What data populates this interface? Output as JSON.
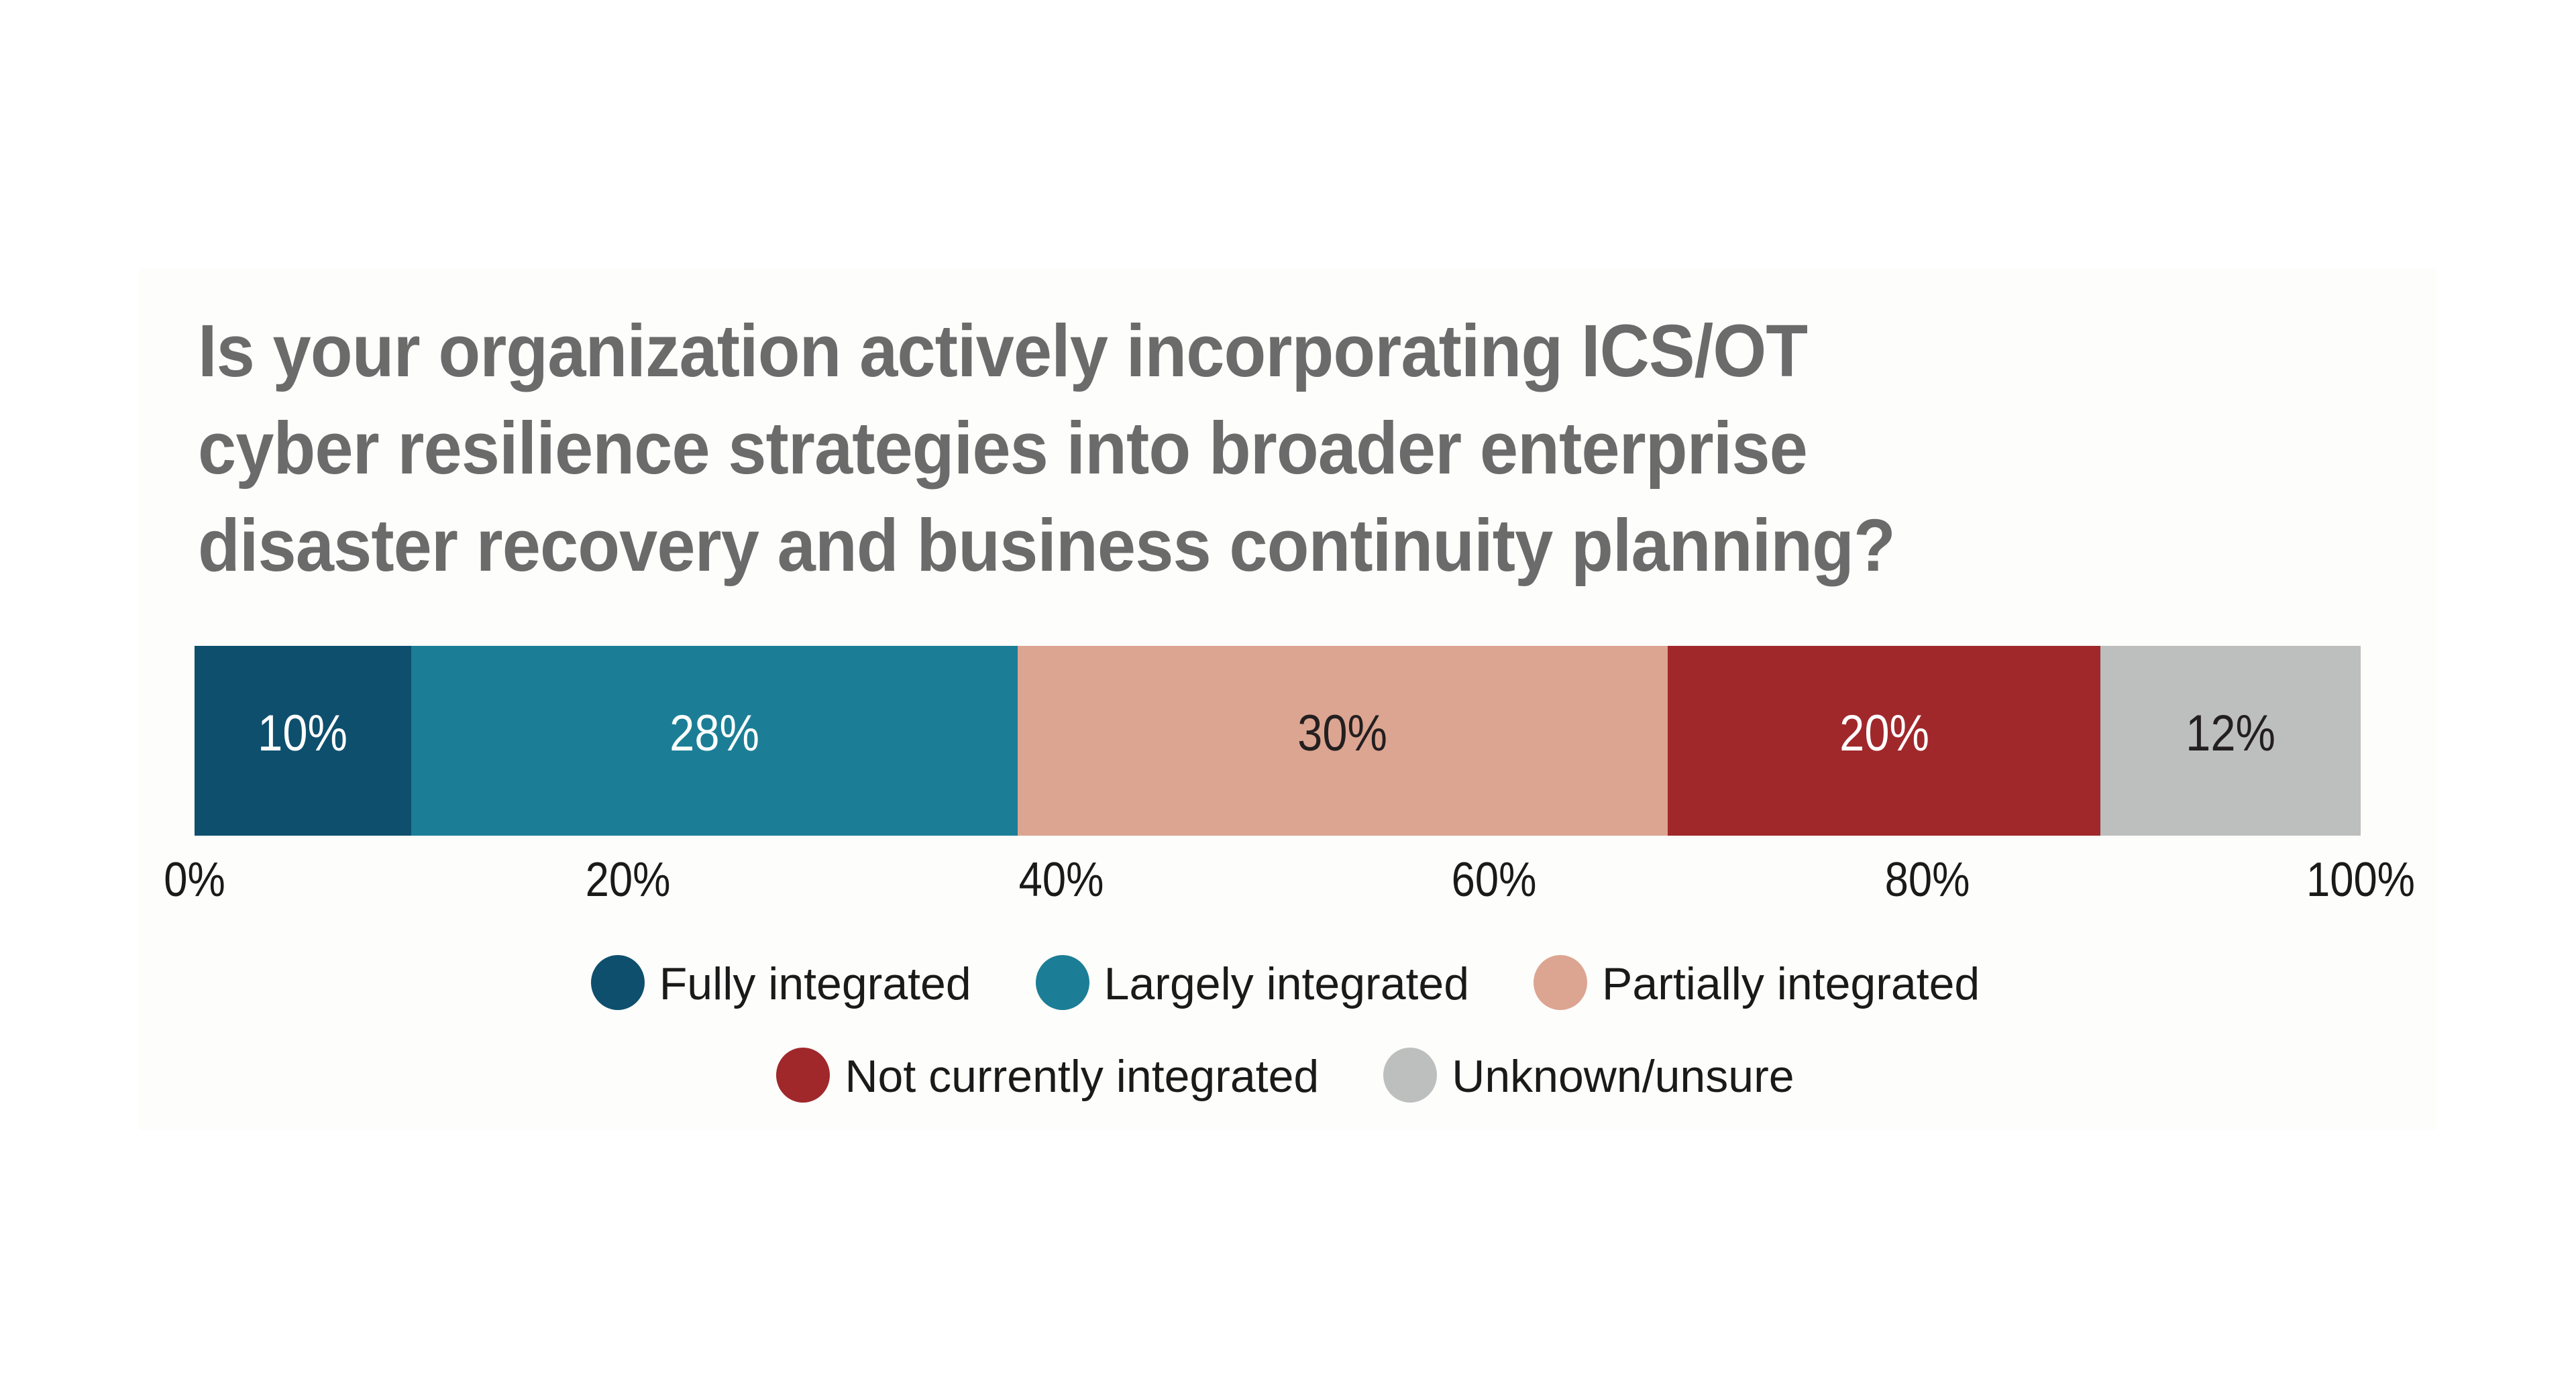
{
  "chart_data": {
    "type": "bar",
    "orientation": "horizontal",
    "stacked": true,
    "title": "Is your organization actively incorporating ICS/OT cyber resilience strategies into broader enterprise disaster recovery and business continuity planning?",
    "title_lines": [
      "Is your organization actively incorporating ICS/OT",
      "cyber resilience strategies into broader enterprise",
      "disaster recovery and business continuity planning?"
    ],
    "xlabel": "",
    "ylabel": "",
    "xlim": [
      0,
      100
    ],
    "xticks": [
      "0%",
      "20%",
      "40%",
      "60%",
      "80%",
      "100%"
    ],
    "grid": false,
    "legend_position": "bottom",
    "categories": [
      "Fully integrated",
      "Largely integrated",
      "Partially integrated",
      "Not currently integrated",
      "Unknown/unsure"
    ],
    "values": [
      10,
      28,
      30,
      20,
      12
    ],
    "series": [
      {
        "name": "Fully integrated",
        "value": 10,
        "label": "10%",
        "color": "#0e4f6e",
        "label_color": "light"
      },
      {
        "name": "Largely integrated",
        "value": 28,
        "label": "28%",
        "color": "#1b7e96",
        "label_color": "light"
      },
      {
        "name": "Partially integrated",
        "value": 30,
        "label": "30%",
        "color": "#dca591",
        "label_color": "dark"
      },
      {
        "name": "Not currently integrated",
        "value": 20,
        "label": "20%",
        "color": "#a0282b",
        "label_color": "light"
      },
      {
        "name": "Unknown/unsure",
        "value": 12,
        "label": "12%",
        "color": "#bdbfbe",
        "label_color": "dark"
      }
    ]
  },
  "colors": {
    "title": "#6b6b6b",
    "text": "#1a1a1a",
    "panel_background": "#fdfdfb",
    "page_background": "#ffffff"
  }
}
